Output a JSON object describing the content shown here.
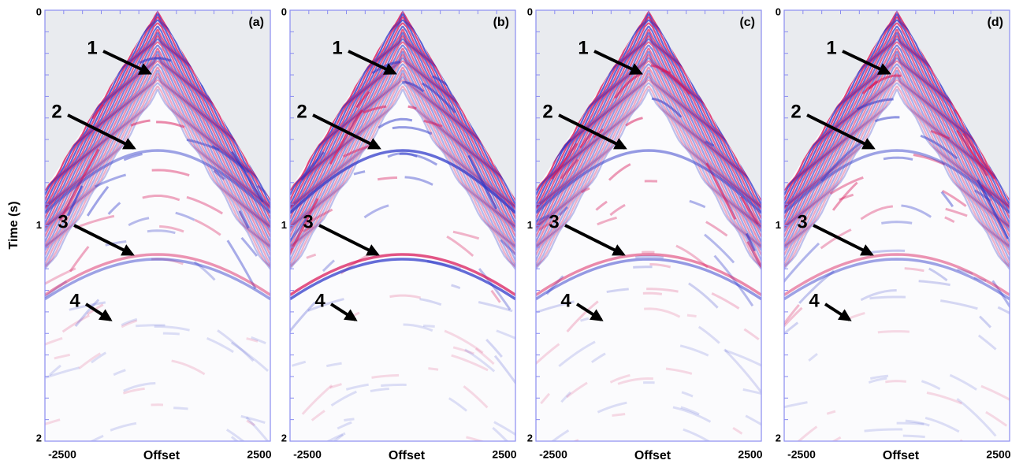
{
  "y_axis_label": "Time (s)",
  "x_axis_label": "Offset",
  "panels": [
    {
      "label": "(a)",
      "y_ticks": [
        "0",
        "1",
        "2"
      ],
      "x_ticks": [
        "-2500",
        "2500"
      ],
      "markers": [
        "1",
        "2",
        "3",
        "4"
      ]
    },
    {
      "label": "(b)",
      "y_ticks": [
        "0",
        "1",
        "2"
      ],
      "x_ticks": [
        "-2500",
        "2500"
      ],
      "markers": [
        "1",
        "2",
        "3",
        "4"
      ]
    },
    {
      "label": "(c)",
      "y_ticks": [
        "0",
        "1",
        "2"
      ],
      "x_ticks": [
        "-2500",
        "2500"
      ],
      "markers": [
        "1",
        "2",
        "3",
        "4"
      ]
    },
    {
      "label": "(d)",
      "y_ticks": [
        "0",
        "1",
        "2"
      ],
      "x_ticks": [
        "-2500",
        "2500"
      ],
      "markers": [
        "1",
        "2",
        "3",
        "4"
      ]
    }
  ]
}
